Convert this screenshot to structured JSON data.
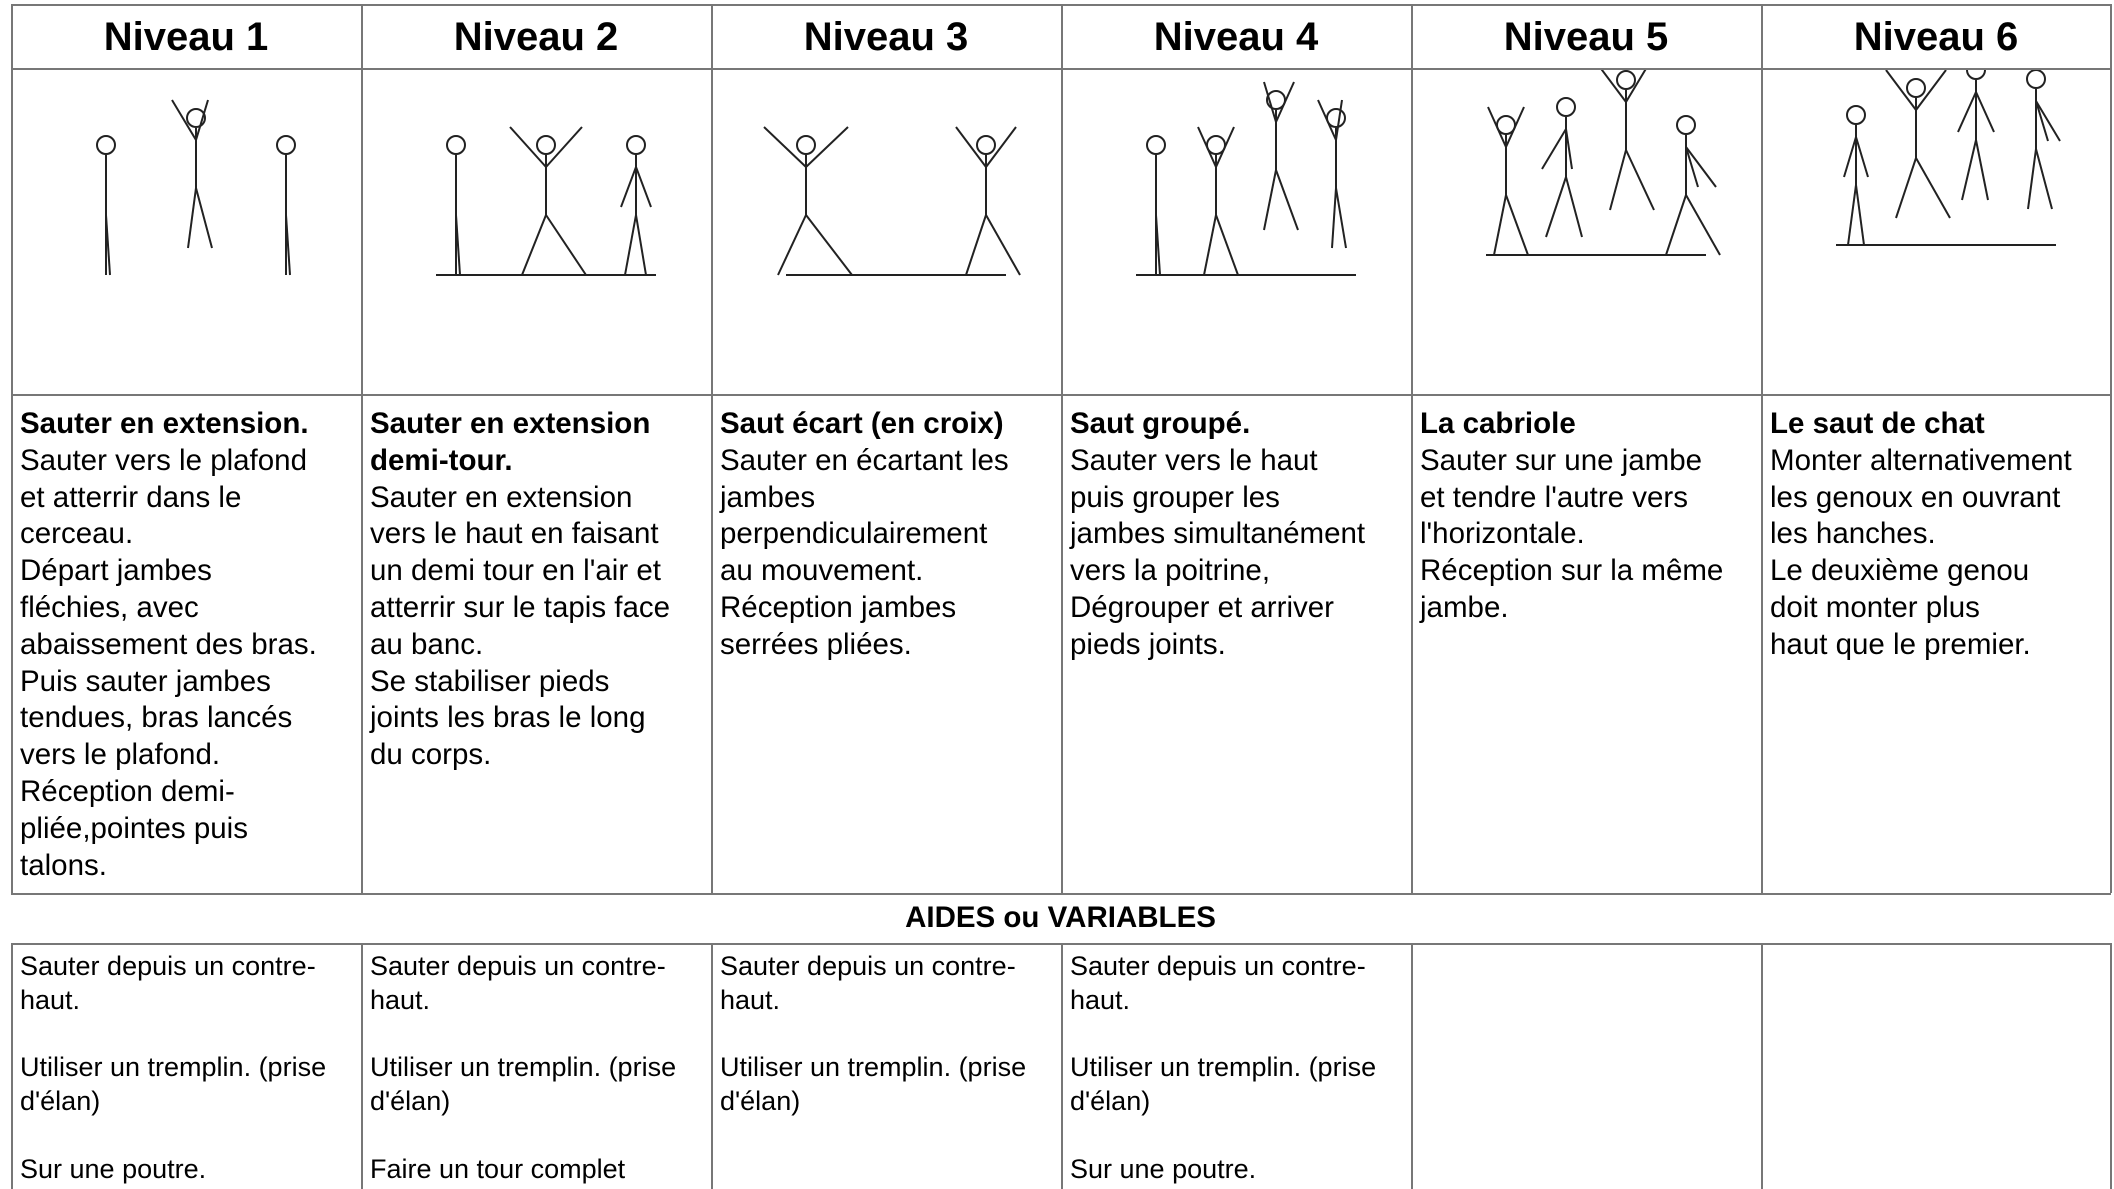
{
  "header": {
    "levels": [
      "Niveau 1",
      "Niveau 2",
      "Niveau 3",
      "Niveau 4",
      "Niveau 5",
      "Niveau 6"
    ]
  },
  "descriptions": [
    {
      "title": [
        "Sauter en extension."
      ],
      "lines": [
        "Sauter vers le plafond",
        "et atterrir dans le",
        "cerceau.",
        "Départ jambes",
        "fléchies, avec",
        "abaissement des bras.",
        "Puis sauter jambes",
        "tendues, bras lancés",
        "vers le plafond.",
        "Réception demi-",
        "pliée,pointes puis",
        "talons."
      ]
    },
    {
      "title": [
        "Sauter en extension",
        "demi-tour."
      ],
      "lines": [
        "Sauter en extension",
        "vers le haut en faisant",
        "un demi tour en l'air et",
        "atterrir sur le tapis face",
        "au banc.",
        "Se stabiliser pieds",
        "joints les bras le long",
        "du corps."
      ]
    },
    {
      "title": [
        "Saut écart (en croix)"
      ],
      "lines": [
        "Sauter en écartant les",
        "jambes",
        "perpendiculairement",
        "au mouvement.",
        "Réception jambes",
        "serrées pliées."
      ]
    },
    {
      "title": [
        "Saut groupé."
      ],
      "lines": [
        "Sauter vers le haut",
        "puis grouper les",
        "jambes simultanément",
        "vers la poitrine,",
        "Dégrouper et arriver",
        "pieds joints."
      ]
    },
    {
      "title": [
        "La cabriole"
      ],
      "lines": [
        "Sauter sur une jambe",
        "et tendre l'autre vers",
        "l'horizontale.",
        "Réception sur la même",
        "jambe."
      ]
    },
    {
      "title": [
        "Le saut de chat"
      ],
      "lines": [
        "Monter alternativement",
        "les genoux en ouvrant",
        "les hanches.",
        "Le deuxième genou",
        "doit monter plus",
        "haut que le premier."
      ]
    }
  ],
  "aides": {
    "title": "AIDES  ou VARIABLES",
    "cells": [
      [
        [
          "Sauter depuis un contre-",
          "haut."
        ],
        [
          "Utiliser un tremplin. (prise",
          "d'élan)"
        ],
        [
          "Sur une poutre."
        ]
      ],
      [
        [
          "Sauter depuis un contre-",
          "haut."
        ],
        [
          "Utiliser un tremplin. (prise",
          "d'élan)"
        ],
        [
          "Faire un tour complet"
        ]
      ],
      [
        [
          "Sauter depuis un contre-",
          "haut."
        ],
        [
          "Utiliser un tremplin. (prise",
          "d'élan)"
        ]
      ],
      [
        [
          "Sauter depuis un contre-",
          "haut."
        ],
        [
          "Utiliser un tremplin. (prise",
          "d'élan)"
        ],
        [
          "Sur une poutre."
        ]
      ],
      [],
      []
    ]
  }
}
